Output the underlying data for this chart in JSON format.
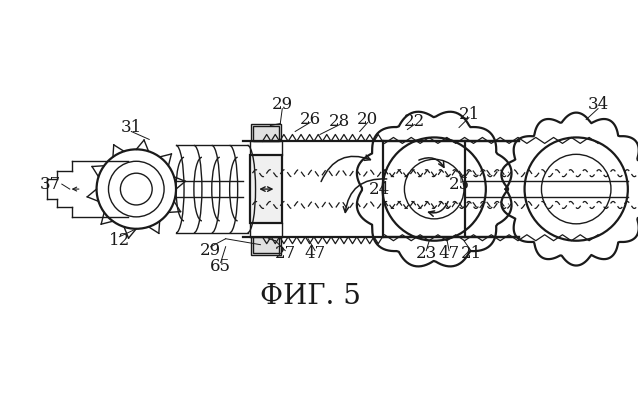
{
  "bg_color": "#ffffff",
  "line_color": "#1a1a1a",
  "title": "ФИГ. 5",
  "title_fontsize": 20,
  "label_fontsize": 12,
  "fig_width": 6.4,
  "fig_height": 3.99,
  "dpi": 100
}
